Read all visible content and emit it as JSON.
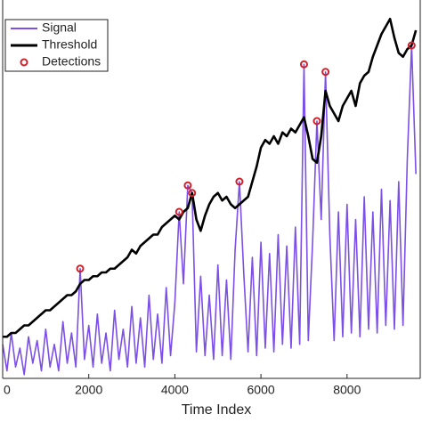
{
  "chart_data": {
    "type": "line",
    "xlabel": "Time Index",
    "xlim": [
      0,
      9700
    ],
    "ylim": [
      0,
      100
    ],
    "xticks": [
      0,
      2000,
      4000,
      6000,
      8000
    ],
    "legend": "upper left",
    "series": [
      {
        "name": "Signal",
        "color": "#7b4fe8",
        "kind": "line",
        "x": [
          0,
          100,
          200,
          300,
          400,
          500,
          600,
          700,
          800,
          900,
          1000,
          1100,
          1200,
          1300,
          1400,
          1500,
          1600,
          1700,
          1800,
          1900,
          2000,
          2100,
          2200,
          2300,
          2400,
          2500,
          2600,
          2700,
          2800,
          2900,
          3000,
          3100,
          3200,
          3300,
          3400,
          3500,
          3600,
          3700,
          3800,
          3900,
          4000,
          4100,
          4200,
          4300,
          4400,
          4500,
          4600,
          4700,
          4800,
          4900,
          5000,
          5100,
          5200,
          5300,
          5400,
          5500,
          5600,
          5700,
          5800,
          5900,
          6000,
          6100,
          6200,
          6300,
          6400,
          6500,
          6600,
          6700,
          6800,
          6900,
          7000,
          7100,
          7200,
          7300,
          7400,
          7500,
          7600,
          7700,
          7800,
          7900,
          8000,
          8100,
          8200,
          8300,
          8400,
          8500,
          8600,
          8700,
          8800,
          8900,
          9000,
          9100,
          9200,
          9300,
          9400,
          9500,
          9600
        ],
        "values": [
          9,
          2,
          12,
          3,
          8,
          1,
          11,
          4,
          10,
          2,
          13,
          3,
          9,
          2,
          15,
          4,
          12,
          3,
          29,
          5,
          14,
          3,
          17,
          4,
          12,
          2,
          18,
          5,
          13,
          3,
          19,
          4,
          16,
          3,
          22,
          5,
          17,
          4,
          24,
          6,
          20,
          44,
          25,
          51,
          49,
          7,
          27,
          6,
          22,
          5,
          30,
          6,
          26,
          5,
          34,
          52,
          28,
          7,
          32,
          6,
          36,
          8,
          33,
          7,
          38,
          9,
          35,
          8,
          40,
          9,
          83,
          10,
          36,
          68,
          42,
          81,
          38,
          10,
          44,
          11,
          46,
          12,
          42,
          11,
          48,
          13,
          44,
          12,
          50,
          14,
          47,
          13,
          52,
          14,
          58,
          88,
          54
        ]
      },
      {
        "name": "Threshold",
        "color": "#000000",
        "kind": "line",
        "x": [
          0,
          100,
          200,
          300,
          400,
          500,
          600,
          700,
          800,
          900,
          1000,
          1100,
          1200,
          1300,
          1400,
          1500,
          1600,
          1700,
          1800,
          1900,
          2000,
          2100,
          2200,
          2300,
          2400,
          2500,
          2600,
          2700,
          2800,
          2900,
          3000,
          3100,
          3200,
          3300,
          3400,
          3500,
          3600,
          3700,
          3800,
          3900,
          4000,
          4100,
          4200,
          4300,
          4400,
          4500,
          4600,
          4700,
          4800,
          4900,
          5000,
          5100,
          5200,
          5300,
          5400,
          5500,
          5600,
          5700,
          5800,
          5900,
          6000,
          6100,
          6200,
          6300,
          6400,
          6500,
          6600,
          6700,
          6800,
          6900,
          7000,
          7100,
          7200,
          7300,
          7400,
          7500,
          7600,
          7700,
          7800,
          7900,
          8000,
          8100,
          8200,
          8300,
          8400,
          8500,
          8600,
          8700,
          8800,
          8900,
          9000,
          9100,
          9200,
          9300,
          9400,
          9500,
          9600
        ],
        "values": [
          11,
          11,
          12,
          12,
          13,
          14,
          14,
          15,
          16,
          17,
          18,
          18,
          19,
          20,
          21,
          22,
          22,
          23,
          25,
          26,
          26,
          27,
          27,
          28,
          28,
          29,
          29,
          30,
          31,
          32,
          34,
          33,
          35,
          36,
          37,
          38,
          38,
          40,
          41,
          42,
          43,
          42,
          44,
          45,
          49,
          42,
          39,
          43,
          46,
          48,
          49,
          47,
          48,
          46,
          45,
          46,
          47,
          48,
          52,
          56,
          61,
          63,
          62,
          64,
          62,
          65,
          64,
          66,
          65,
          67,
          69,
          64,
          58,
          57,
          64,
          76,
          72,
          70,
          68,
          72,
          74,
          76,
          72,
          78,
          80,
          81,
          85,
          88,
          91,
          93,
          95,
          90,
          86,
          85,
          87,
          88,
          92
        ]
      },
      {
        "name": "Detections",
        "color": "#d0202a",
        "kind": "scatter",
        "x": [
          1800,
          4100,
          4300,
          4400,
          5500,
          7000,
          7300,
          7500,
          9500
        ],
        "values": [
          29,
          44,
          51,
          49,
          52,
          83,
          68,
          81,
          88
        ]
      }
    ]
  }
}
